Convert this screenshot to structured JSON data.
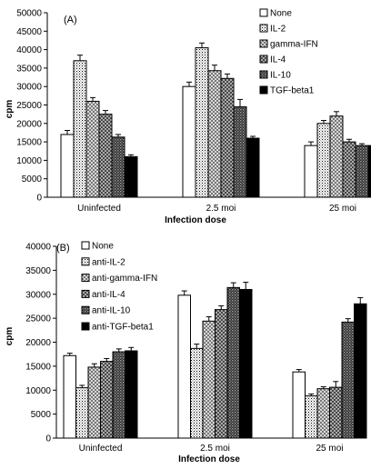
{
  "chart_data": [
    {
      "type": "bar",
      "panel_label": "(A)",
      "categories": [
        "Uninfected",
        "2.5 moi",
        "25 moi"
      ],
      "xlabel": "Infection dose",
      "ylabel": "cpm",
      "ylim": [
        0,
        50000
      ],
      "yticks": [
        "0",
        "5000",
        "10000",
        "15000",
        "20000",
        "25000",
        "30000",
        "35000",
        "40000",
        "45000",
        "50000"
      ],
      "grid": false,
      "legend_position": "top-right",
      "series": [
        {
          "name": "None",
          "pattern": "white",
          "values": [
            17000,
            30000,
            14000
          ],
          "errors": [
            1100,
            1200,
            1000
          ]
        },
        {
          "name": "IL-2",
          "pattern": "dots",
          "values": [
            37000,
            40500,
            20000
          ],
          "errors": [
            1500,
            1300,
            800
          ]
        },
        {
          "name": "gamma-IFN",
          "pattern": "checker",
          "values": [
            26000,
            34300,
            22000
          ],
          "errors": [
            1000,
            1500,
            1200
          ]
        },
        {
          "name": "IL-4",
          "pattern": "crosshatch",
          "values": [
            22500,
            32200,
            15000
          ],
          "errors": [
            1000,
            1200,
            700
          ]
        },
        {
          "name": "IL-10",
          "pattern": "darkcheck",
          "values": [
            16300,
            24500,
            14000
          ],
          "errors": [
            700,
            2000,
            500
          ]
        },
        {
          "name": "TGF-beta1",
          "pattern": "black",
          "values": [
            11000,
            16000,
            14000
          ],
          "errors": [
            500,
            500,
            400
          ]
        }
      ]
    },
    {
      "type": "bar",
      "panel_label": "(B)",
      "categories": [
        "Uninfected",
        "2.5 moi",
        "25 moi"
      ],
      "xlabel": "Infection dose",
      "ylabel": "cpm",
      "ylim": [
        0,
        40000
      ],
      "yticks": [
        "0",
        "5000",
        "10000",
        "15000",
        "20000",
        "25000",
        "30000",
        "35000",
        "40000"
      ],
      "grid": false,
      "legend_position": "top-left",
      "series": [
        {
          "name": "None",
          "pattern": "white",
          "values": [
            17200,
            29800,
            13800
          ],
          "errors": [
            500,
            900,
            500
          ]
        },
        {
          "name": "anti-IL-2",
          "pattern": "dots",
          "values": [
            10500,
            18700,
            8800
          ],
          "errors": [
            500,
            900,
            400
          ]
        },
        {
          "name": "anti-gamma-IFN",
          "pattern": "checker",
          "values": [
            14800,
            24400,
            10300
          ],
          "errors": [
            700,
            900,
            400
          ]
        },
        {
          "name": "anti-IL-4",
          "pattern": "crosshatch",
          "values": [
            16000,
            26800,
            10600
          ],
          "errors": [
            600,
            800,
            1200
          ]
        },
        {
          "name": "anti-IL-10",
          "pattern": "darkcheck",
          "values": [
            18000,
            31400,
            24200
          ],
          "errors": [
            600,
            1000,
            700
          ]
        },
        {
          "name": "anti-TGF-beta1",
          "pattern": "black",
          "values": [
            18200,
            31000,
            28000
          ],
          "errors": [
            700,
            1500,
            1300
          ]
        }
      ]
    }
  ]
}
